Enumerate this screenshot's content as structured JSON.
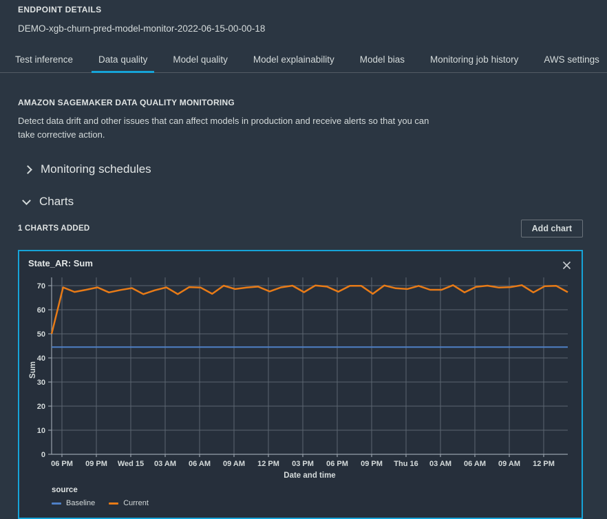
{
  "header": {
    "eyebrow": "ENDPOINT DETAILS",
    "endpoint_name": "DEMO-xgb-churn-pred-model-monitor-2022-06-15-00-00-18"
  },
  "tabs": [
    {
      "label": "Test inference",
      "active": false
    },
    {
      "label": "Data quality",
      "active": true
    },
    {
      "label": "Model quality",
      "active": false
    },
    {
      "label": "Model explainability",
      "active": false
    },
    {
      "label": "Model bias",
      "active": false
    },
    {
      "label": "Monitoring job history",
      "active": false
    },
    {
      "label": "AWS settings",
      "active": false
    }
  ],
  "monitoring_section": {
    "heading": "AMAZON SAGEMAKER DATA QUALITY MONITORING",
    "description": "Detect data drift and other issues that can affect models in production and receive alerts so that you can take corrective action."
  },
  "expanders": {
    "schedules": {
      "label": "Monitoring schedules",
      "collapsed": true
    },
    "charts": {
      "label": "Charts",
      "collapsed": false
    }
  },
  "charts_section": {
    "count_label": "1 CHARTS ADDED",
    "add_button_label": "Add chart"
  },
  "chart_panel": {
    "title": "State_AR: Sum",
    "close_icon": "close-icon"
  },
  "chart_data": {
    "type": "line",
    "title": "State_AR: Sum",
    "xlabel": "Date and time",
    "ylabel": "Sum",
    "ylim": [
      0,
      70
    ],
    "y_ticks": [
      0,
      10,
      20,
      30,
      40,
      50,
      60,
      70
    ],
    "x_tick_labels": [
      "06 PM",
      "09 PM",
      "Wed 15",
      "03 AM",
      "06 AM",
      "09 AM",
      "12 PM",
      "03 PM",
      "06 PM",
      "09 PM",
      "Thu 16",
      "03 AM",
      "06 AM",
      "09 AM",
      "12 PM"
    ],
    "x_tick_interval_hours": 3,
    "points_interval_hours": 1,
    "grid": true,
    "legend_title": "source",
    "legend_position": "bottom-left",
    "series": [
      {
        "name": "Baseline",
        "color": "#4f80c6",
        "style": "constant",
        "value": 44.5
      },
      {
        "name": "Current",
        "color": "#e87b17",
        "style": "line",
        "values": [
          50,
          69.3,
          67.4,
          68.3,
          69.3,
          67.2,
          68.2,
          69.0,
          66.5,
          68.1,
          69.3,
          66.5,
          69.4,
          69.2,
          66.6,
          70.0,
          68.6,
          69.2,
          69.6,
          67.6,
          69.3,
          70.0,
          67.3,
          70.1,
          69.6,
          67.5,
          69.9,
          69.9,
          66.6,
          70.1,
          68.9,
          68.6,
          69.9,
          68.3,
          68.3,
          70.2,
          67.2,
          69.5,
          70.0,
          69.2,
          69.4,
          70.2,
          67.2,
          69.8,
          69.9,
          67.3
        ]
      }
    ]
  },
  "colors": {
    "page_bg": "#2b3642",
    "panel_bg": "#262f3b",
    "panel_border": "#16a4d8",
    "tab_underline": "#16a4d8",
    "baseline_blue": "#4f80c6",
    "current_orange": "#e87b17",
    "gridline": "#5c6670",
    "axis": "#97a1ab",
    "text_primary": "#d5dbdb"
  }
}
